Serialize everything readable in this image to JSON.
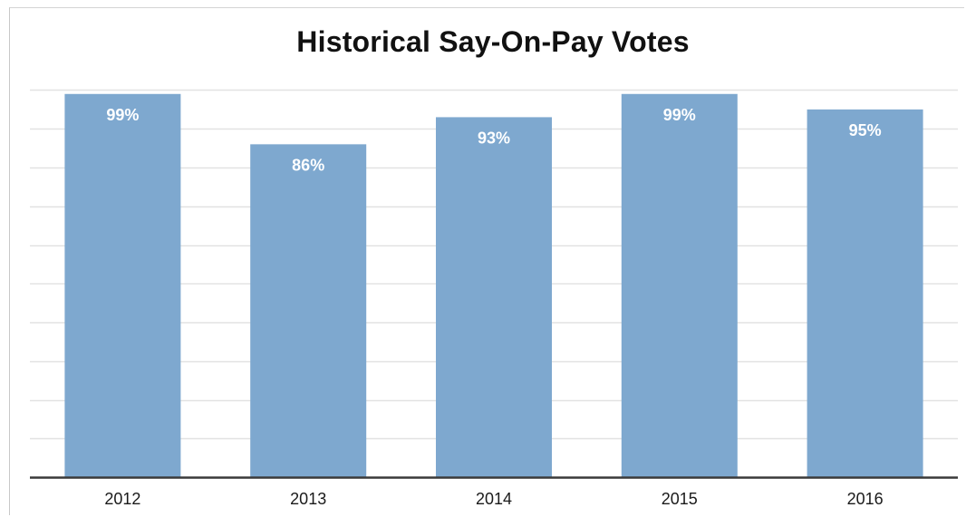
{
  "chart_data": {
    "type": "bar",
    "title": "Historical Say-On-Pay Votes",
    "xlabel": "",
    "ylabel": "",
    "categories": [
      "2012",
      "2013",
      "2014",
      "2015",
      "2016"
    ],
    "values": [
      99,
      86,
      93,
      99,
      95
    ],
    "data_labels": [
      "99%",
      "86%",
      "93%",
      "99%",
      "95%"
    ],
    "ylim": [
      0,
      100
    ],
    "grid": true,
    "legend": "none",
    "colors": {
      "bar": "#7ea8cf",
      "gridline": "#e2e2e2",
      "axis": "#3a3a3a",
      "label": "#ffffff"
    }
  }
}
